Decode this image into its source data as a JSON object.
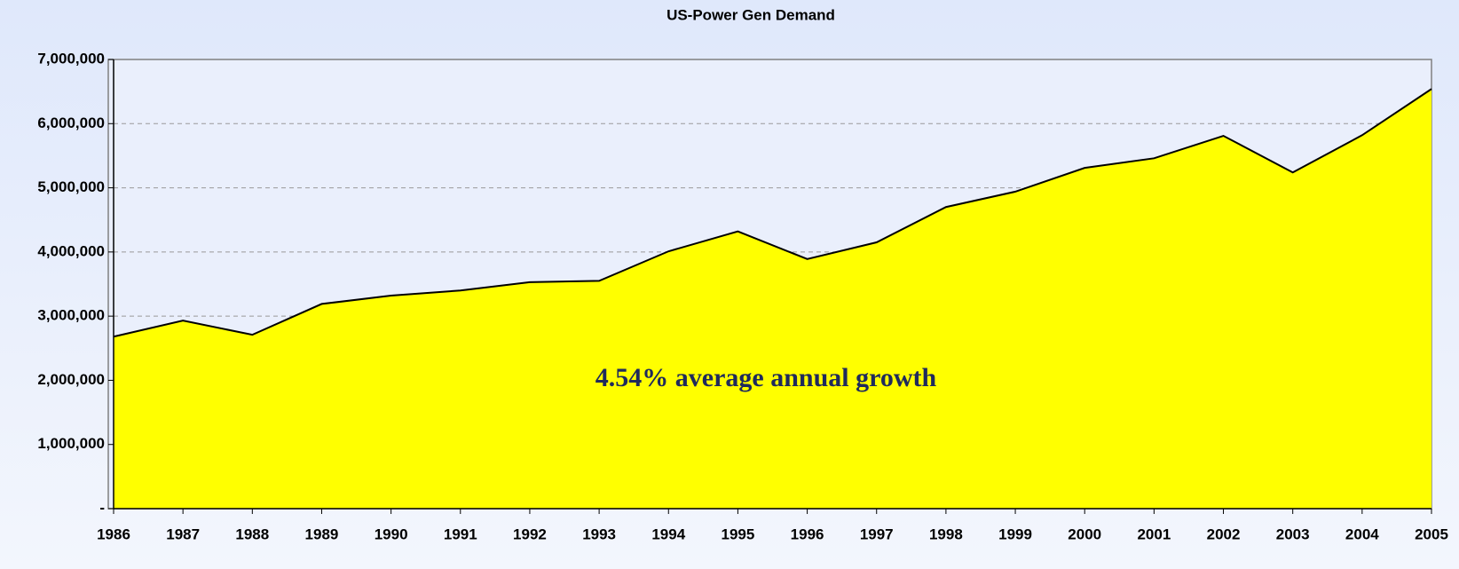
{
  "chart_data": {
    "type": "area",
    "title": "US-Power Gen Demand",
    "annotation": "4.54% average annual growth",
    "categories": [
      "1986",
      "1987",
      "1988",
      "1989",
      "1990",
      "1991",
      "1992",
      "1993",
      "1994",
      "1995",
      "1996",
      "1997",
      "1998",
      "1999",
      "2000",
      "2001",
      "2002",
      "2003",
      "2004",
      "2005"
    ],
    "values": [
      2680000,
      2930000,
      2710000,
      3190000,
      3320000,
      3400000,
      3530000,
      3550000,
      4010000,
      4320000,
      3890000,
      4150000,
      4700000,
      4940000,
      5310000,
      5460000,
      5810000,
      5240000,
      5820000,
      6540000
    ],
    "color": "#ffff00",
    "ylim": [
      0,
      7000000
    ],
    "yticks": [
      {
        "value": 0,
        "label": "-"
      },
      {
        "value": 1000000,
        "label": "1,000,000"
      },
      {
        "value": 2000000,
        "label": "2,000,000"
      },
      {
        "value": 3000000,
        "label": "3,000,000"
      },
      {
        "value": 4000000,
        "label": "4,000,000"
      },
      {
        "value": 5000000,
        "label": "5,000,000"
      },
      {
        "value": 6000000,
        "label": "6,000,000"
      },
      {
        "value": 7000000,
        "label": "7,000,000"
      }
    ],
    "grid": true
  }
}
